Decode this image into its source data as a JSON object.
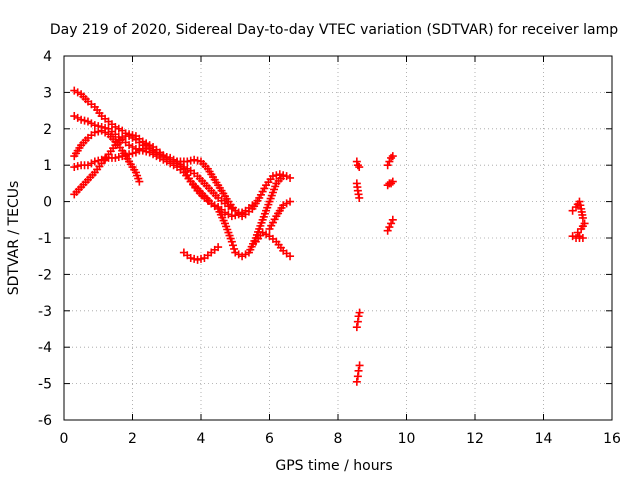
{
  "chart_data": {
    "type": "scatter",
    "title": "Day 219 of 2020, Sidereal Day-to-day VTEC variation (SDTVAR) for receiver lamp",
    "xlabel": "GPS time / hours",
    "ylabel": "SDTVAR / TECUs",
    "xlim": [
      0,
      16
    ],
    "ylim": [
      -6,
      4
    ],
    "xticks": [
      0,
      2,
      4,
      6,
      8,
      10,
      12,
      14,
      16
    ],
    "yticks": [
      -6,
      -5,
      -4,
      -3,
      -2,
      -1,
      0,
      1,
      2,
      3,
      4
    ],
    "grid": true,
    "legend": "none",
    "marker": "plus",
    "color": "#ff0000",
    "series": [
      {
        "points": [
          [
            0.3,
            3.05
          ],
          [
            0.5,
            2.95
          ],
          [
            0.7,
            2.75
          ],
          [
            0.9,
            2.6
          ],
          [
            1.1,
            2.35
          ],
          [
            1.3,
            2.2
          ],
          [
            1.5,
            2.05
          ],
          [
            1.7,
            1.95
          ],
          [
            1.9,
            1.8
          ],
          [
            2.1,
            1.7
          ],
          [
            2.3,
            1.55
          ],
          [
            2.5,
            1.45
          ],
          [
            2.7,
            1.35
          ],
          [
            2.9,
            1.25
          ],
          [
            3.1,
            1.2
          ],
          [
            3.3,
            1.1
          ],
          [
            3.5,
            0.95
          ],
          [
            3.7,
            0.85
          ],
          [
            3.9,
            0.7
          ],
          [
            4.1,
            0.5
          ],
          [
            4.3,
            0.3
          ],
          [
            4.5,
            0.1
          ],
          [
            4.7,
            -0.05
          ],
          [
            4.9,
            -0.2
          ],
          [
            5.1,
            -0.3
          ],
          [
            5.3,
            -0.35
          ],
          [
            5.5,
            -0.2
          ],
          [
            5.7,
            0.1
          ],
          [
            5.9,
            0.45
          ],
          [
            6.1,
            0.7
          ],
          [
            6.3,
            0.75
          ],
          [
            6.5,
            0.7
          ],
          [
            6.6,
            0.65
          ]
        ]
      },
      {
        "points": [
          [
            0.3,
            2.35
          ],
          [
            0.5,
            2.25
          ],
          [
            0.7,
            2.2
          ],
          [
            0.9,
            2.1
          ],
          [
            1.1,
            2.05
          ],
          [
            1.3,
            2.0
          ],
          [
            1.5,
            1.85
          ],
          [
            1.7,
            1.7
          ],
          [
            1.9,
            1.55
          ],
          [
            2.1,
            1.45
          ],
          [
            2.3,
            1.4
          ],
          [
            2.5,
            1.35
          ],
          [
            2.7,
            1.25
          ],
          [
            2.9,
            1.15
          ],
          [
            3.1,
            1.05
          ],
          [
            3.3,
            0.95
          ],
          [
            3.5,
            0.8
          ],
          [
            3.7,
            0.55
          ],
          [
            3.9,
            0.35
          ],
          [
            4.1,
            0.15
          ],
          [
            4.3,
            -0.05
          ],
          [
            4.5,
            -0.2
          ],
          [
            4.7,
            -0.6
          ],
          [
            4.9,
            -1.1
          ],
          [
            5.0,
            -1.4
          ],
          [
            5.2,
            -1.5
          ],
          [
            5.4,
            -1.4
          ],
          [
            5.6,
            -1.0
          ],
          [
            5.8,
            -0.5
          ],
          [
            6.0,
            0.0
          ],
          [
            6.2,
            0.5
          ],
          [
            6.4,
            0.7
          ]
        ]
      },
      {
        "points": [
          [
            0.3,
            1.25
          ],
          [
            0.5,
            1.55
          ],
          [
            0.7,
            1.75
          ],
          [
            0.9,
            1.9
          ],
          [
            1.1,
            1.95
          ],
          [
            1.3,
            1.85
          ],
          [
            1.5,
            1.65
          ],
          [
            1.7,
            1.4
          ],
          [
            1.9,
            1.1
          ],
          [
            2.1,
            0.8
          ],
          [
            2.2,
            0.55
          ]
        ]
      },
      {
        "points": [
          [
            0.3,
            0.2
          ],
          [
            0.5,
            0.4
          ],
          [
            0.7,
            0.6
          ],
          [
            0.9,
            0.8
          ],
          [
            1.1,
            1.05
          ],
          [
            1.3,
            1.3
          ],
          [
            1.5,
            1.55
          ],
          [
            1.7,
            1.75
          ],
          [
            1.9,
            1.85
          ],
          [
            2.1,
            1.8
          ],
          [
            2.3,
            1.65
          ],
          [
            2.5,
            1.5
          ]
        ]
      },
      {
        "points": [
          [
            0.3,
            0.95
          ],
          [
            0.5,
            1.0
          ],
          [
            0.7,
            1.0
          ],
          [
            0.9,
            1.1
          ],
          [
            1.1,
            1.15
          ],
          [
            1.3,
            1.2
          ],
          [
            1.5,
            1.2
          ],
          [
            1.7,
            1.25
          ],
          [
            1.9,
            1.3
          ],
          [
            2.1,
            1.35
          ],
          [
            2.3,
            1.45
          ],
          [
            2.5,
            1.45
          ],
          [
            2.7,
            1.35
          ],
          [
            2.9,
            1.25
          ],
          [
            3.1,
            1.15
          ],
          [
            3.3,
            1.05
          ],
          [
            3.5,
            0.9
          ],
          [
            3.7,
            0.55
          ],
          [
            3.9,
            0.3
          ],
          [
            4.1,
            0.1
          ],
          [
            4.3,
            -0.05
          ],
          [
            4.5,
            -0.15
          ],
          [
            4.7,
            -0.3
          ],
          [
            4.9,
            -0.4
          ],
          [
            5.1,
            -0.35
          ],
          [
            5.3,
            -0.25
          ],
          [
            5.5,
            -0.1
          ]
        ]
      },
      {
        "points": [
          [
            2.4,
            1.6
          ],
          [
            2.6,
            1.5
          ],
          [
            2.8,
            1.35
          ],
          [
            3.0,
            1.2
          ],
          [
            3.2,
            1.1
          ],
          [
            3.4,
            1.1
          ],
          [
            3.6,
            1.1
          ],
          [
            3.8,
            1.15
          ],
          [
            4.0,
            1.1
          ],
          [
            4.2,
            0.9
          ],
          [
            4.4,
            0.6
          ],
          [
            4.6,
            0.3
          ],
          [
            4.8,
            0.0
          ],
          [
            5.0,
            -0.25
          ],
          [
            5.2,
            -0.4
          ]
        ]
      },
      {
        "points": [
          [
            3.5,
            -1.4
          ],
          [
            3.7,
            -1.55
          ],
          [
            3.9,
            -1.6
          ],
          [
            4.1,
            -1.55
          ],
          [
            4.3,
            -1.4
          ],
          [
            4.5,
            -1.25
          ]
        ]
      },
      {
        "points": [
          [
            5.6,
            -1.1
          ],
          [
            5.8,
            -0.85
          ],
          [
            6.0,
            -0.95
          ],
          [
            6.2,
            -1.1
          ],
          [
            6.4,
            -1.35
          ],
          [
            6.6,
            -1.5
          ]
        ]
      },
      {
        "points": [
          [
            6.0,
            -0.75
          ],
          [
            6.2,
            -0.4
          ],
          [
            6.4,
            -0.1
          ],
          [
            6.6,
            0.0
          ]
        ]
      },
      {
        "points": [
          [
            8.55,
            1.1
          ],
          [
            8.58,
            1.0
          ],
          [
            8.62,
            0.95
          ]
        ]
      },
      {
        "points": [
          [
            8.55,
            0.5
          ],
          [
            8.58,
            0.3
          ],
          [
            8.62,
            0.1
          ]
        ]
      },
      {
        "points": [
          [
            8.55,
            -3.45
          ],
          [
            8.58,
            -3.3
          ],
          [
            8.6,
            -3.15
          ],
          [
            8.63,
            -3.05
          ]
        ]
      },
      {
        "points": [
          [
            8.55,
            -4.95
          ],
          [
            8.58,
            -4.8
          ],
          [
            8.6,
            -4.65
          ],
          [
            8.63,
            -4.5
          ]
        ]
      },
      {
        "points": [
          [
            9.45,
            1.0
          ],
          [
            9.5,
            1.1
          ],
          [
            9.55,
            1.2
          ],
          [
            9.6,
            1.25
          ]
        ]
      },
      {
        "points": [
          [
            9.45,
            0.45
          ],
          [
            9.5,
            0.5
          ],
          [
            9.55,
            0.5
          ],
          [
            9.6,
            0.55
          ]
        ]
      },
      {
        "points": [
          [
            9.45,
            -0.8
          ],
          [
            9.5,
            -0.7
          ],
          [
            9.55,
            -0.6
          ],
          [
            9.6,
            -0.5
          ]
        ]
      },
      {
        "points": [
          [
            14.85,
            -0.25
          ],
          [
            14.95,
            -0.15
          ],
          [
            15.05,
            0.0
          ],
          [
            15.1,
            -0.2
          ],
          [
            15.15,
            -0.45
          ],
          [
            15.2,
            -0.6
          ],
          [
            15.1,
            -0.75
          ],
          [
            15.0,
            -0.85
          ],
          [
            15.05,
            -0.95
          ],
          [
            15.15,
            -1.0
          ],
          [
            14.95,
            -1.0
          ],
          [
            14.85,
            -0.95
          ]
        ]
      }
    ]
  }
}
